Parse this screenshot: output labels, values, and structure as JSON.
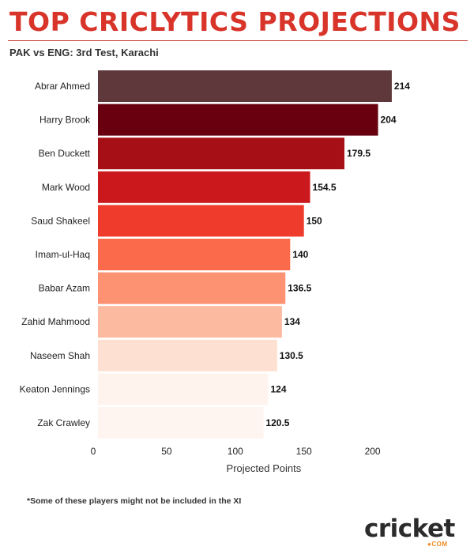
{
  "title": "TOP CRICLYTICS PROJECTIONS",
  "subtitle": "PAK vs ENG: 3rd Test, Karachi",
  "footnote": "*Some of these players might not be included in the XI",
  "logo": {
    "text": "cricket",
    "suffix": "●COM"
  },
  "chart_data": {
    "type": "bar",
    "orientation": "horizontal",
    "categories": [
      "Abrar Ahmed",
      "Harry Brook",
      "Ben Duckett",
      "Mark Wood",
      "Saud Shakeel",
      "Imam-ul-Haq",
      "Babar Azam",
      "Zahid Mahmood",
      "Naseem Shah",
      "Keaton Jennings",
      "Zak Crawley"
    ],
    "values": [
      214,
      204,
      179.5,
      154.5,
      150,
      140,
      136.5,
      134,
      130.5,
      124,
      120.5
    ],
    "value_labels": [
      "214",
      "204",
      "179.5",
      "154.5",
      "150",
      "140",
      "136.5",
      "134",
      "130.5",
      "124",
      "120.5"
    ],
    "colors": [
      "#5e383a",
      "#680010",
      "#a50f15",
      "#cb181d",
      "#ef3b2c",
      "#fb6a4a",
      "#fc9272",
      "#fcbba1",
      "#fee0d2",
      "#fff3ee",
      "#fff5f0"
    ],
    "xlabel": "Projected Points",
    "ylabel": "",
    "xlim": [
      0,
      230
    ],
    "xticks": [
      0,
      50,
      100,
      150,
      200
    ],
    "grid": false,
    "legend": "none"
  }
}
